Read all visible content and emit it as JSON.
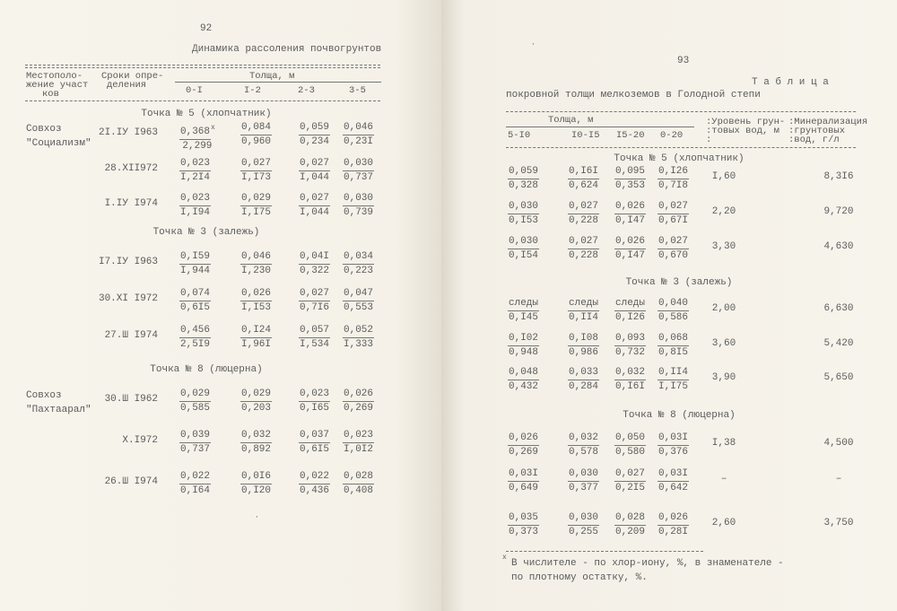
{
  "left_page": {
    "page_number": "92",
    "title": "Динамика рассоления почвогрунтов",
    "header": {
      "location": [
        "Местополо-",
        "жение участ",
        "ков"
      ],
      "dates": [
        "Сроки опре-",
        "деления"
      ],
      "thickness": "Толща, м",
      "columns": [
        "0-I",
        "I-2",
        "2-3",
        "3-5"
      ]
    },
    "sections": [
      {
        "title": "Точка № 5 (хлопчатник)",
        "location": [
          "Совхоз",
          "\"Социализм\""
        ],
        "rows": [
          {
            "date": "2I.IУ I963",
            "values": [
              [
                "0,368",
                "2,299"
              ],
              [
                "0,084",
                "0,960"
              ],
              [
                "0,059",
                "0,234"
              ],
              [
                "0,046",
                "0,23I"
              ]
            ]
          },
          {
            "date": "28.XII972",
            "values": [
              [
                "0,023",
                "I,2I4"
              ],
              [
                "0,027",
                "I,I73"
              ],
              [
                "0,027",
                "I,044"
              ],
              [
                "0,030",
                "0,737"
              ]
            ]
          },
          {
            "date": "I.IУ I974",
            "values": [
              [
                "0,023",
                "I,I94"
              ],
              [
                "0,029",
                "I,I75"
              ],
              [
                "0,027",
                "I,044"
              ],
              [
                "0,030",
                "0,739"
              ]
            ]
          }
        ]
      },
      {
        "title": "Точка № 3 (залежь)",
        "location": [],
        "rows": [
          {
            "date": "I7.IУ I963",
            "values": [
              [
                "0,I59",
                "I,944"
              ],
              [
                "0,046",
                "I,230"
              ],
              [
                "0,04I",
                "0,322"
              ],
              [
                "0,034",
                "0,223"
              ]
            ]
          },
          {
            "date": "30.XI I972",
            "values": [
              [
                "0,074",
                "0,6I5"
              ],
              [
                "0,026",
                "I,I53"
              ],
              [
                "0,027",
                "0,7I6"
              ],
              [
                "0,047",
                "0,553"
              ]
            ]
          },
          {
            "date": "27.Ш I974",
            "values": [
              [
                "0,456",
                "2,5I9"
              ],
              [
                "0,I24",
                "I,96I"
              ],
              [
                "0,057",
                "I,534"
              ],
              [
                "0,052",
                "I,333"
              ]
            ]
          }
        ]
      },
      {
        "title": "Точка № 8 (люцерна)",
        "location": [
          "Совхоз",
          "\"Пахтаарал\""
        ],
        "rows": [
          {
            "date": "30.Ш I962",
            "values": [
              [
                "0,029",
                "0,585"
              ],
              [
                "0,029",
                "0,203"
              ],
              [
                "0,023",
                "0,I65"
              ],
              [
                "0,026",
                "0,269"
              ]
            ]
          },
          {
            "date": "X.I972",
            "values": [
              [
                "0,039",
                "0,737"
              ],
              [
                "0,032",
                "0,892"
              ],
              [
                "0,037",
                "0,6I5"
              ],
              [
                "0,023",
                "I,0I2"
              ]
            ]
          },
          {
            "date": "26.Ш I974",
            "values": [
              [
                "0,022",
                "0,I64"
              ],
              [
                "0,0I6",
                "0,I20"
              ],
              [
                "0,022",
                "0,436"
              ],
              [
                "0,028",
                "0,408"
              ]
            ]
          }
        ]
      }
    ],
    "footnote_mark": "x"
  },
  "right_page": {
    "page_number": "93",
    "table_label": "Т а б л и ц а",
    "title": "покровной толщи мелкоземов в Голодной степи",
    "header": {
      "thickness": "Толща, м",
      "columns": [
        "5-I0",
        "I0-I5",
        "I5-20",
        "0-20"
      ],
      "groundwater_level": [
        ":Уровень грун-",
        ":товых вод, м",
        ":"
      ],
      "mineralization": [
        ":Минерализация",
        ":грунтовых",
        ":вод, г/л"
      ]
    },
    "sections": [
      {
        "title": "Точка № 5 (хлопчатник)",
        "rows": [
          {
            "values": [
              [
                "0,059",
                "0,328"
              ],
              [
                "0,I6I",
                "0,624"
              ],
              [
                "0,095",
                "0,353"
              ],
              [
                "0,I26",
                "0,7I8"
              ]
            ],
            "level": "I,60",
            "mineralization": "8,3I6"
          },
          {
            "values": [
              [
                "0,030",
                "0,I53"
              ],
              [
                "0,027",
                "0,228"
              ],
              [
                "0,026",
                "0,I47"
              ],
              [
                "0,027",
                "0,67I"
              ]
            ],
            "level": "2,20",
            "mineralization": "9,720"
          },
          {
            "values": [
              [
                "0,030",
                "0,I54"
              ],
              [
                "0,027",
                "0,228"
              ],
              [
                "0,026",
                "0,I47"
              ],
              [
                "0,027",
                "0,670"
              ]
            ],
            "level": "3,30",
            "mineralization": "4,630"
          }
        ]
      },
      {
        "title": "Точка № 3 (залежь)",
        "rows": [
          {
            "values": [
              [
                "следы",
                "0,I45"
              ],
              [
                "следы",
                "0,II4"
              ],
              [
                "следы",
                "0,I26"
              ],
              [
                "0,040",
                "0,586"
              ]
            ],
            "level": "2,00",
            "mineralization": "6,630"
          },
          {
            "values": [
              [
                "0,I02",
                "0,948"
              ],
              [
                "0,I08",
                "0,986"
              ],
              [
                "0,093",
                "0,732"
              ],
              [
                "0,068",
                "0,8I5"
              ]
            ],
            "level": "3,60",
            "mineralization": "5,420"
          },
          {
            "values": [
              [
                "0,048",
                "0,432"
              ],
              [
                "0,033",
                "0,284"
              ],
              [
                "0,032",
                "0,I6I"
              ],
              [
                "0,II4",
                "I,I75"
              ]
            ],
            "level": "3,90",
            "mineralization": "5,650"
          }
        ]
      },
      {
        "title": "Точка № 8 (люцерна)",
        "rows": [
          {
            "values": [
              [
                "0,026",
                "0,269"
              ],
              [
                "0,032",
                "0,578"
              ],
              [
                "0,050",
                "0,580"
              ],
              [
                "0,03I",
                "0,376"
              ]
            ],
            "level": "I,38",
            "mineralization": "4,500"
          },
          {
            "values": [
              [
                "0,03I",
                "0,649"
              ],
              [
                "0,030",
                "0,377"
              ],
              [
                "0,027",
                "0,2I5"
              ],
              [
                "0,03I",
                "0,642"
              ]
            ],
            "level": "–",
            "mineralization": "–"
          },
          {
            "values": [
              [
                "0,035",
                "0,373"
              ],
              [
                "0,030",
                "0,255"
              ],
              [
                "0,028",
                "0,209"
              ],
              [
                "0,026",
                "0,28I"
              ]
            ],
            "level": "2,60",
            "mineralization": "3,750"
          }
        ]
      }
    ],
    "footnote": {
      "mark": "x",
      "lines": [
        "В числителе - по хлор-иону, %, в знаменателе -",
        "по плотному остатку, %."
      ]
    }
  }
}
